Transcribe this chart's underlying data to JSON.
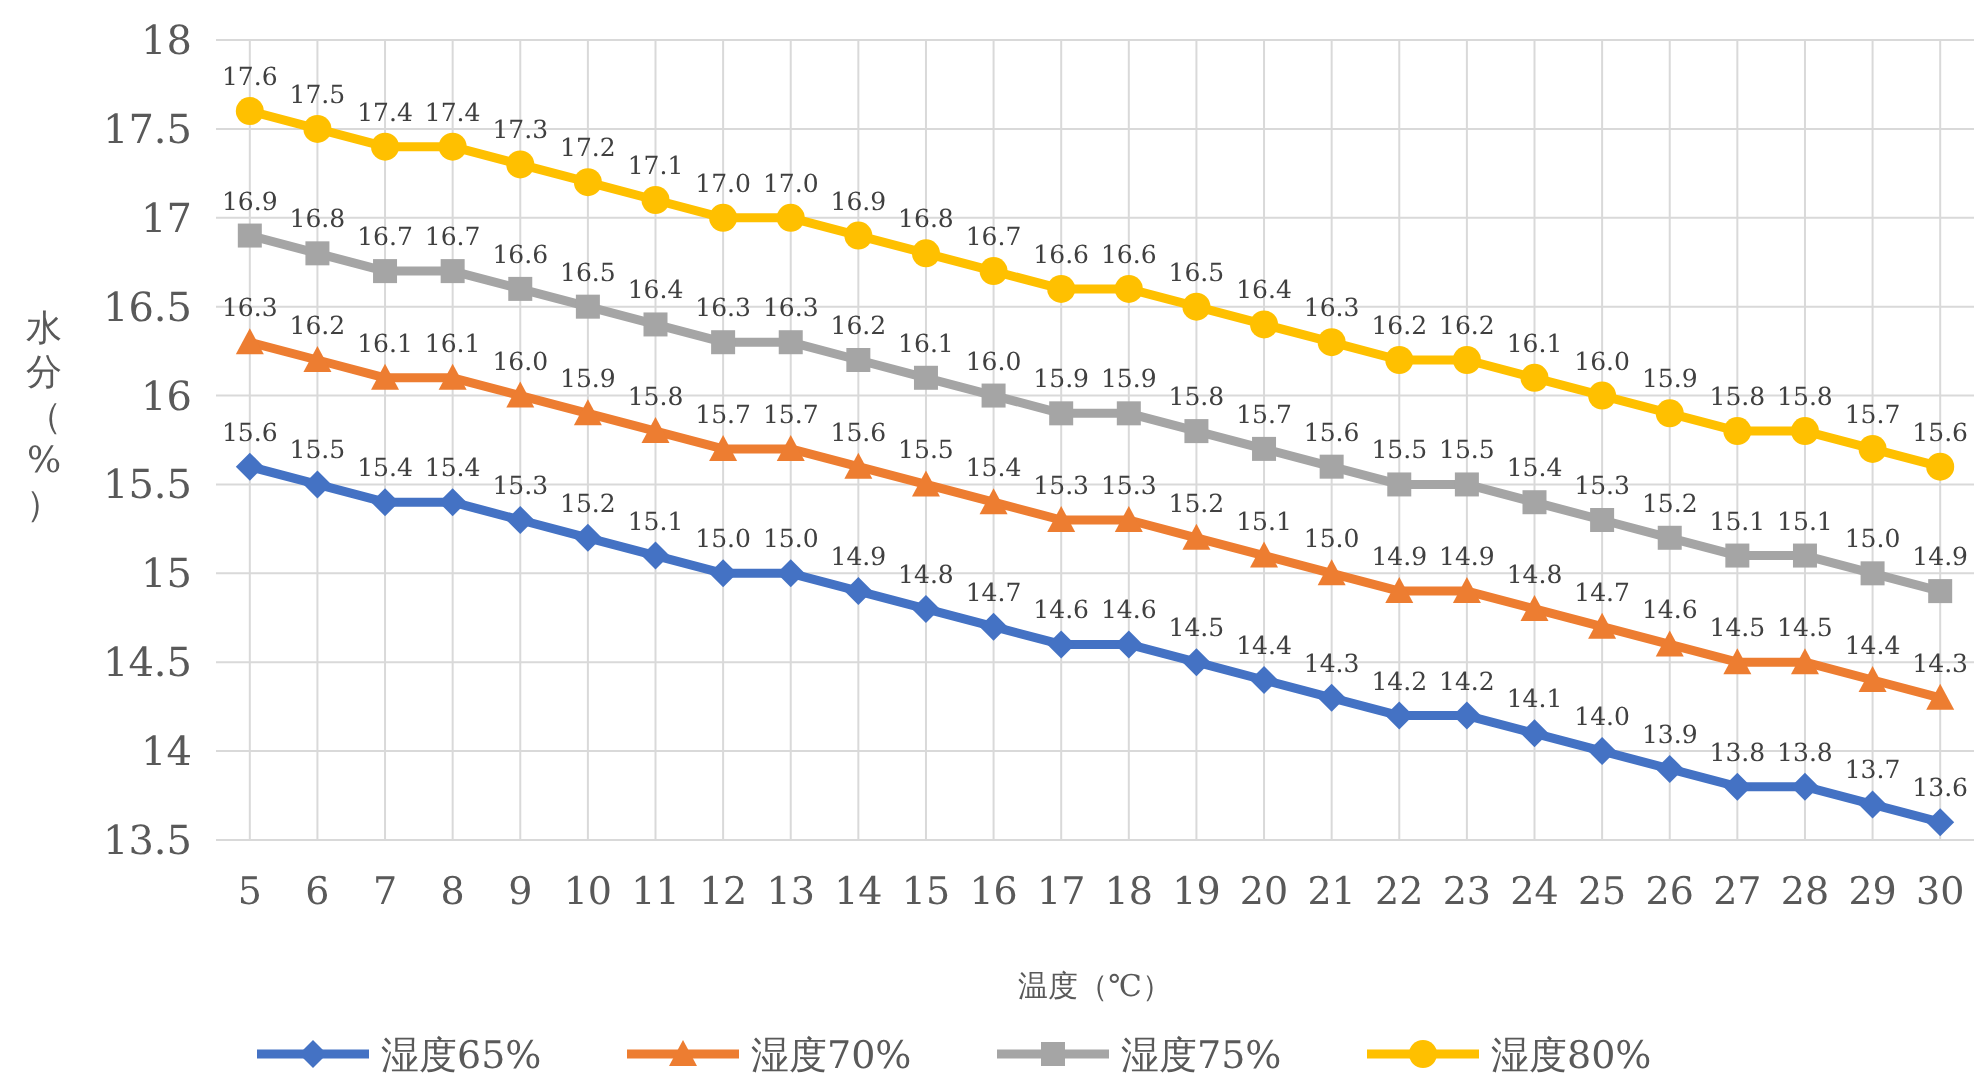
{
  "chart_data": {
    "type": "line",
    "xlabel": "温度（℃）",
    "ylabel": "水分（%）",
    "categories": [
      "5",
      "6",
      "7",
      "8",
      "9",
      "10",
      "11",
      "12",
      "13",
      "14",
      "15",
      "16",
      "17",
      "18",
      "19",
      "20",
      "21",
      "22",
      "23",
      "24",
      "25",
      "26",
      "27",
      "28",
      "29",
      "30"
    ],
    "ylim": [
      13.5,
      18
    ],
    "yticks": [
      13.5,
      14,
      14.5,
      15,
      15.5,
      16,
      16.5,
      17,
      17.5,
      18
    ],
    "grid": true,
    "legend": "bottom",
    "series": [
      {
        "name": "湿度65%",
        "color": "#4472c4",
        "marker": "diamond",
        "values": [
          15.6,
          15.5,
          15.4,
          15.4,
          15.3,
          15.2,
          15.1,
          15.0,
          15.0,
          14.9,
          14.8,
          14.7,
          14.6,
          14.6,
          14.5,
          14.4,
          14.3,
          14.2,
          14.2,
          14.1,
          14.0,
          13.9,
          13.8,
          13.8,
          13.7,
          13.6
        ],
        "value_labels": [
          "15.6",
          "15.5",
          "15.4",
          "15.4",
          "15.3",
          "15.2",
          "15.1",
          "15.0",
          "15.0",
          "14.9",
          "14.8",
          "14.7",
          "14.6",
          "14.6",
          "14.5",
          "14.4",
          "14.3",
          "14.2",
          "14.2",
          "14.1",
          "14.0",
          "13.9",
          "13.8",
          "13.8",
          "13.7",
          "13.6"
        ]
      },
      {
        "name": "湿度70%",
        "color": "#ed7d31",
        "marker": "triangle",
        "values": [
          16.3,
          16.2,
          16.1,
          16.1,
          16.0,
          15.9,
          15.8,
          15.7,
          15.7,
          15.6,
          15.5,
          15.4,
          15.3,
          15.3,
          15.2,
          15.1,
          15.0,
          14.9,
          14.9,
          14.8,
          14.7,
          14.6,
          14.5,
          14.5,
          14.4,
          14.3
        ],
        "value_labels": [
          "16.3",
          "16.2",
          "16.1",
          "16.1",
          "16.0",
          "15.9",
          "15.8",
          "15.7",
          "15.7",
          "15.6",
          "15.5",
          "15.4",
          "15.3",
          "15.3",
          "15.2",
          "15.1",
          "15.0",
          "14.9",
          "14.9",
          "14.8",
          "14.7",
          "14.6",
          "14.5",
          "14.5",
          "14.4",
          "14.3"
        ]
      },
      {
        "name": "湿度75%",
        "color": "#a5a5a5",
        "marker": "square",
        "values": [
          16.9,
          16.8,
          16.7,
          16.7,
          16.6,
          16.5,
          16.4,
          16.3,
          16.3,
          16.2,
          16.1,
          16.0,
          15.9,
          15.9,
          15.8,
          15.7,
          15.6,
          15.5,
          15.5,
          15.4,
          15.3,
          15.2,
          15.1,
          15.1,
          15.0,
          14.9
        ],
        "value_labels": [
          "16.9",
          "16.8",
          "16.7",
          "16.7",
          "16.6",
          "16.5",
          "16.4",
          "16.3",
          "16.3",
          "16.2",
          "16.1",
          "16.0",
          "15.9",
          "15.9",
          "15.8",
          "15.7",
          "15.6",
          "15.5",
          "15.5",
          "15.4",
          "15.3",
          "15.2",
          "15.1",
          "15.1",
          "15.0",
          "14.9"
        ]
      },
      {
        "name": "湿度80%",
        "color": "#ffc000",
        "marker": "circle",
        "values": [
          17.6,
          17.5,
          17.4,
          17.4,
          17.3,
          17.2,
          17.1,
          17.0,
          17.0,
          16.9,
          16.8,
          16.7,
          16.6,
          16.6,
          16.5,
          16.4,
          16.3,
          16.2,
          16.2,
          16.1,
          16.0,
          15.9,
          15.8,
          15.8,
          15.7,
          15.6
        ],
        "value_labels": [
          "17.6",
          "17.5",
          "17.4",
          "17.4",
          "17.3",
          "17.2",
          "17.1",
          "17.0",
          "17.0",
          "16.9",
          "16.8",
          "16.7",
          "16.6",
          "16.6",
          "16.5",
          "16.4",
          "16.3",
          "16.2",
          "16.2",
          "16.1",
          "16.0",
          "15.9",
          "15.8",
          "15.8",
          "15.7",
          "15.6"
        ]
      }
    ]
  }
}
